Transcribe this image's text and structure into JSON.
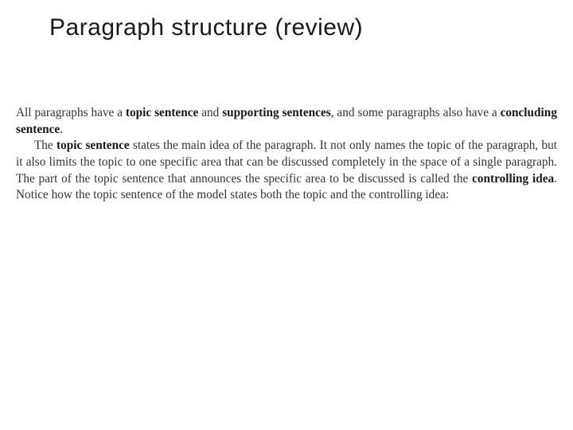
{
  "title": "Paragraph structure (review)",
  "para1_a": "All paragraphs have a ",
  "para1_b": "topic sentence",
  "para1_c": " and ",
  "para1_d": "supporting sentences",
  "para1_e": ", and some paragraphs also have a ",
  "para1_f": "concluding sentence",
  "para1_g": ".",
  "para2_a": "The ",
  "para2_b": "topic sentence",
  "para2_c": " states the main idea of the paragraph. It not only names the topic of the paragraph, but it also limits the topic to one specific area that can be discussed completely in the space of a single paragraph. The part of the topic sentence that announces the specific area to be discussed is called the ",
  "para2_d": "controlling idea",
  "para2_e": ". Notice how the topic sentence of the model states both the topic and the controlling idea:"
}
